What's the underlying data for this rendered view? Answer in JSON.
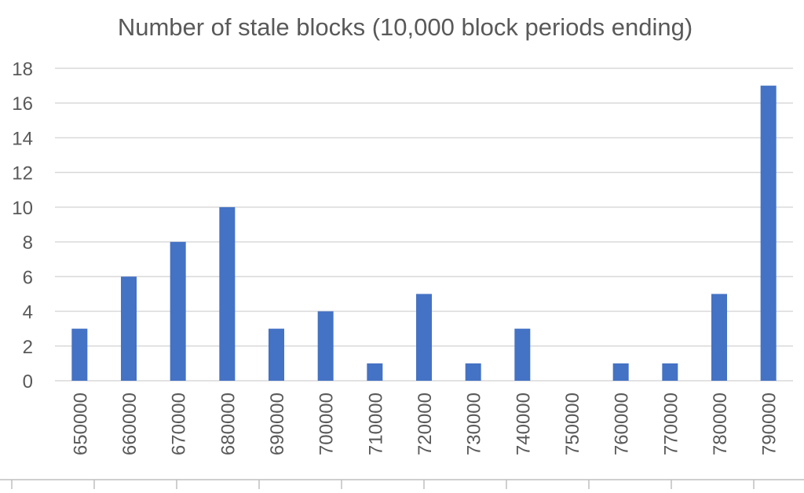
{
  "chart_data": {
    "type": "bar",
    "title": "Number of stale blocks (10,000 block periods ending)",
    "xlabel": "",
    "ylabel": "",
    "categories": [
      "650000",
      "660000",
      "670000",
      "680000",
      "690000",
      "700000",
      "710000",
      "720000",
      "730000",
      "740000",
      "750000",
      "760000",
      "770000",
      "780000",
      "790000"
    ],
    "values": [
      3,
      6,
      8,
      10,
      3,
      4,
      1,
      5,
      1,
      3,
      0,
      1,
      1,
      5,
      17
    ],
    "ylim": [
      0,
      18
    ],
    "yticks": [
      "0",
      "2",
      "4",
      "6",
      "8",
      "10",
      "12",
      "14",
      "16",
      "18"
    ],
    "grid": true,
    "legend": "none",
    "bar_color": "#4472C4",
    "grid_color": "#D9D9D9",
    "text_color": "#595959"
  }
}
